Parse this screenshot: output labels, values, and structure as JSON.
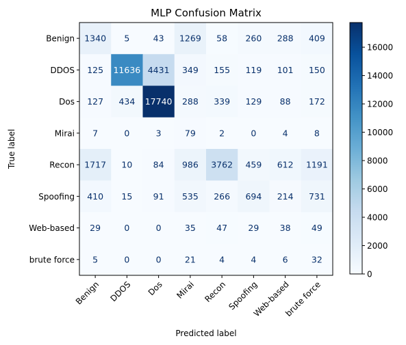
{
  "chart_data": {
    "type": "heatmap",
    "title": "MLP Confusion Matrix",
    "xlabel": "Predicted label",
    "ylabel": "True label",
    "row_labels": [
      "Benign",
      "DDOS",
      "Dos",
      "Mirai",
      "Recon",
      "Spoofing",
      "Web-based",
      "brute force"
    ],
    "col_labels": [
      "Benign",
      "DDOS",
      "Dos",
      "Mirai",
      "Recon",
      "Spoofing",
      "Web-based",
      "brute force"
    ],
    "values": [
      [
        1340,
        5,
        43,
        1269,
        58,
        260,
        288,
        409
      ],
      [
        125,
        11636,
        4431,
        349,
        155,
        119,
        101,
        150
      ],
      [
        127,
        434,
        17740,
        288,
        339,
        129,
        88,
        172
      ],
      [
        7,
        0,
        3,
        79,
        2,
        0,
        4,
        8
      ],
      [
        1717,
        10,
        84,
        986,
        3762,
        459,
        612,
        1191
      ],
      [
        410,
        15,
        91,
        535,
        266,
        694,
        214,
        731
      ],
      [
        29,
        0,
        0,
        35,
        47,
        29,
        38,
        49
      ],
      [
        5,
        0,
        0,
        21,
        4,
        4,
        6,
        32
      ]
    ],
    "colormap": "Blues",
    "colorbar": {
      "range": [
        0,
        17740
      ],
      "ticks": [
        0,
        2000,
        4000,
        6000,
        8000,
        10000,
        12000,
        14000,
        16000
      ]
    }
  }
}
